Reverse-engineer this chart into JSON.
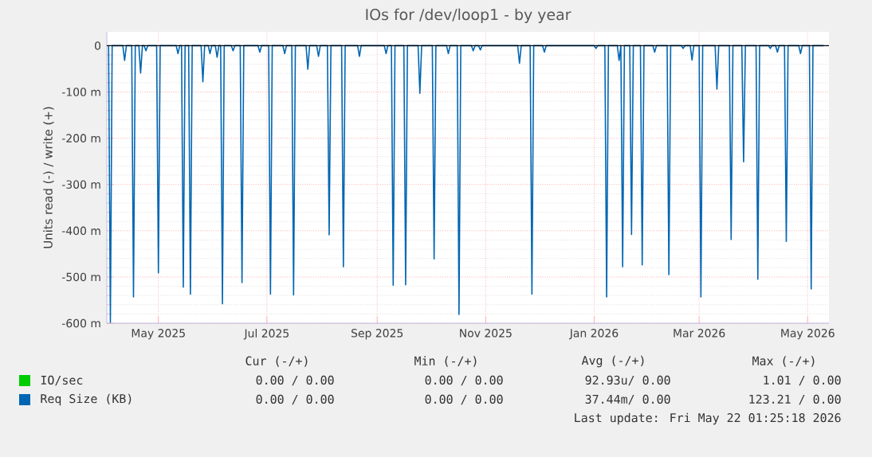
{
  "chart_data": {
    "type": "line",
    "title": "IOs for /dev/loop1 - by year",
    "ylabel": "Units read (-) / write (+)",
    "xlim": [
      "2025-04-02",
      "2026-05-13"
    ],
    "xticks": [
      {
        "value": "2025-05-01",
        "label": "May 2025"
      },
      {
        "value": "2025-07-01",
        "label": "Jul 2025"
      },
      {
        "value": "2025-09-01",
        "label": "Sep 2025"
      },
      {
        "value": "2025-11-01",
        "label": "Nov 2025"
      },
      {
        "value": "2026-01-01",
        "label": "Jan 2026"
      },
      {
        "value": "2026-03-01",
        "label": "Mar 2026"
      },
      {
        "value": "2026-05-01",
        "label": "May 2026"
      }
    ],
    "ylim": [
      -600,
      30
    ],
    "yticks": [
      {
        "value": -600,
        "label": "-600 m"
      },
      {
        "value": -500,
        "label": "-500 m"
      },
      {
        "value": -400,
        "label": "-400 m"
      },
      {
        "value": -300,
        "label": "-300 m"
      },
      {
        "value": -200,
        "label": "-200 m"
      },
      {
        "value": -100,
        "label": "-100 m"
      },
      0
    ],
    "grid": true,
    "legend": "bottom",
    "ref_lines": [
      {
        "axis": "y",
        "value": 0,
        "color": "#000000"
      }
    ],
    "series": [
      {
        "name": "IO/sec",
        "color": "#00cc00"
      },
      {
        "name": "Req Size (KB)",
        "color": "#0066b3",
        "x": [
          "2025-04-03",
          "2025-04-04",
          "2025-04-05",
          "2025-04-11",
          "2025-04-12",
          "2025-04-13",
          "2025-04-16",
          "2025-04-17",
          "2025-04-18",
          "2025-04-20",
          "2025-04-21",
          "2025-04-22",
          "2025-04-23",
          "2025-04-24",
          "2025-04-25",
          "2025-04-30",
          "2025-05-01",
          "2025-05-02",
          "2025-05-11",
          "2025-05-12",
          "2025-05-13",
          "2025-05-14",
          "2025-05-15",
          "2025-05-16",
          "2025-05-18",
          "2025-05-19",
          "2025-05-20",
          "2025-05-25",
          "2025-05-26",
          "2025-05-27",
          "2025-05-29",
          "2025-05-30",
          "2025-05-31",
          "2025-06-02",
          "2025-06-03",
          "2025-06-04",
          "2025-06-05",
          "2025-06-06",
          "2025-06-07",
          "2025-06-11",
          "2025-06-12",
          "2025-06-13",
          "2025-06-16",
          "2025-06-17",
          "2025-06-18",
          "2025-06-26",
          "2025-06-27",
          "2025-06-28",
          "2025-07-02",
          "2025-07-03",
          "2025-07-04",
          "2025-07-10",
          "2025-07-11",
          "2025-07-12",
          "2025-07-15",
          "2025-07-16",
          "2025-07-17",
          "2025-07-23",
          "2025-07-24",
          "2025-07-25",
          "2025-07-29",
          "2025-07-30",
          "2025-07-31",
          "2025-08-04",
          "2025-08-05",
          "2025-08-06",
          "2025-08-12",
          "2025-08-13",
          "2025-08-14",
          "2025-08-21",
          "2025-08-22",
          "2025-08-23",
          "2025-09-05",
          "2025-09-06",
          "2025-09-07",
          "2025-09-09",
          "2025-09-10",
          "2025-09-11",
          "2025-09-16",
          "2025-09-17",
          "2025-09-18",
          "2025-09-24",
          "2025-09-25",
          "2025-09-26",
          "2025-10-02",
          "2025-10-03",
          "2025-10-04",
          "2025-10-10",
          "2025-10-11",
          "2025-10-12",
          "2025-10-16",
          "2025-10-17",
          "2025-10-18",
          "2025-10-24",
          "2025-10-25",
          "2025-10-26",
          "2025-10-28",
          "2025-10-29",
          "2025-10-30",
          "2025-11-19",
          "2025-11-20",
          "2025-11-21",
          "2025-11-26",
          "2025-11-27",
          "2025-11-28",
          "2025-12-03",
          "2025-12-04",
          "2025-12-05",
          "2026-01-01",
          "2026-01-02",
          "2026-01-03",
          "2026-01-07",
          "2026-01-08",
          "2026-01-09",
          "2026-01-14",
          "2026-01-15",
          "2026-01-16",
          "2026-01-17",
          "2026-01-18",
          "2026-01-21",
          "2026-01-22",
          "2026-01-23",
          "2026-01-27",
          "2026-01-28",
          "2026-01-29",
          "2026-02-03",
          "2026-02-04",
          "2026-02-05",
          "2026-02-11",
          "2026-02-12",
          "2026-02-13",
          "2026-02-19",
          "2026-02-20",
          "2026-02-21",
          "2026-02-24",
          "2026-02-25",
          "2026-02-26",
          "2026-03-01",
          "2026-03-02",
          "2026-03-03",
          "2026-03-10",
          "2026-03-11",
          "2026-03-12",
          "2026-03-18",
          "2026-03-19",
          "2026-03-20",
          "2026-03-25",
          "2026-03-26",
          "2026-03-27",
          "2026-04-02",
          "2026-04-03",
          "2026-04-04",
          "2026-04-09",
          "2026-04-10",
          "2026-04-11",
          "2026-04-13",
          "2026-04-14",
          "2026-04-15",
          "2026-04-18",
          "2026-04-19",
          "2026-04-20",
          "2026-04-26",
          "2026-04-27",
          "2026-04-28",
          "2026-05-02",
          "2026-05-03",
          "2026-05-04",
          "2026-05-10"
        ],
        "values": [
          0,
          -598,
          0,
          0,
          -32,
          0,
          0,
          -543,
          0,
          0,
          -59,
          0,
          0,
          -11,
          0,
          0,
          -491,
          0,
          0,
          -17,
          0,
          0,
          -522,
          0,
          0,
          -537,
          0,
          0,
          -78,
          0,
          0,
          -17,
          0,
          0,
          -25,
          0,
          0,
          -558,
          0,
          0,
          -11,
          0,
          0,
          -512,
          0,
          0,
          -14,
          0,
          0,
          -537,
          0,
          0,
          -17,
          0,
          0,
          -539,
          0,
          0,
          -51,
          0,
          0,
          -23,
          0,
          0,
          -409,
          0,
          0,
          -478,
          0,
          0,
          -23,
          0,
          0,
          -17,
          0,
          0,
          -518,
          0,
          0,
          -517,
          0,
          0,
          -103,
          0,
          0,
          -461,
          0,
          0,
          -17,
          0,
          0,
          -581,
          0,
          0,
          -11,
          0,
          0,
          -9,
          0,
          0,
          -38,
          0,
          0,
          -537,
          0,
          0,
          -14,
          0,
          0,
          -6,
          0,
          0,
          -543,
          0,
          0,
          -32,
          0,
          -478,
          0,
          0,
          -408,
          0,
          0,
          -474,
          0,
          0,
          -14,
          0,
          0,
          -495,
          0,
          0,
          -6,
          0,
          0,
          -31,
          0,
          0,
          -543,
          0,
          0,
          -94,
          0,
          0,
          -419,
          0,
          0,
          -251,
          0,
          0,
          -505,
          0,
          0,
          -6,
          0,
          0,
          -14,
          0,
          0,
          -423,
          0,
          0,
          -17,
          0,
          0,
          -526,
          0,
          0
        ]
      }
    ],
    "annotations": [
      "Cur (-/+)",
      "Min (-/+)",
      "Avg (-/+)",
      "Max (-/+)",
      "0.00 / 0.00",
      "0.00 / 0.00",
      "92.93u/ 0.00",
      "1.01 / 0.00",
      "0.00 / 0.00",
      "0.00 / 0.00",
      "37.44m/ 0.00",
      "123.21 / 0.00",
      "Last update: Fri May 22 01:25:18 2026"
    ]
  }
}
